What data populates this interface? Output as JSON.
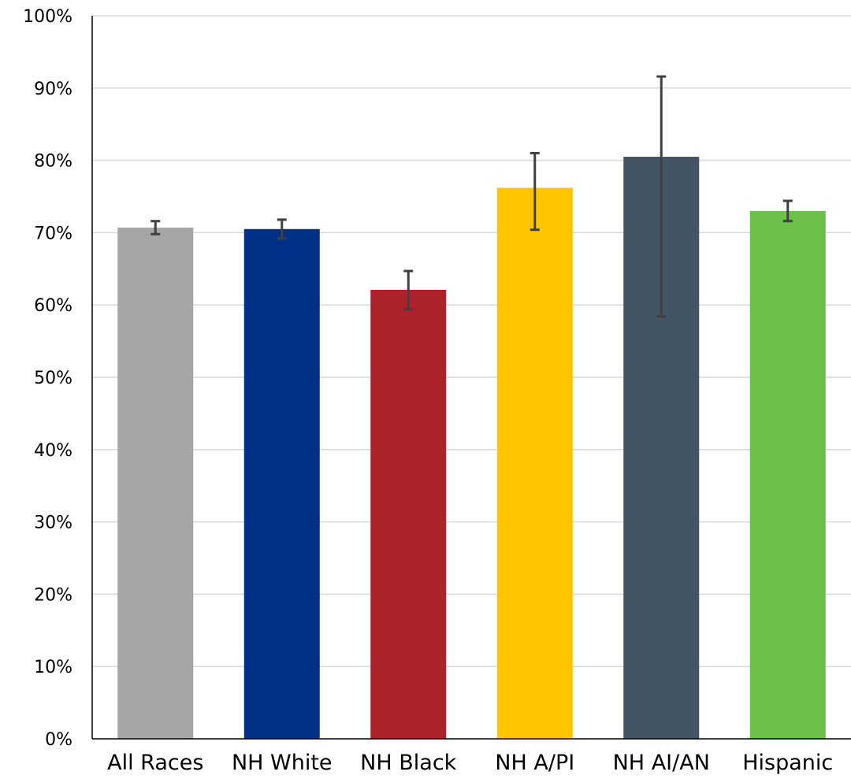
{
  "chart_data": {
    "type": "bar",
    "title": "",
    "xlabel": "",
    "ylabel": "",
    "ylim": [
      0,
      1
    ],
    "grid": true,
    "y_ticks": [
      "0%",
      "10%",
      "20%",
      "30%",
      "40%",
      "50%",
      "60%",
      "70%",
      "80%",
      "90%",
      "100%"
    ],
    "categories": [
      "All Races",
      "NH White",
      "NH Black",
      "NH A/PI",
      "NH AI/AN",
      "Hispanic"
    ],
    "values": [
      0.707,
      0.705,
      0.621,
      0.762,
      0.805,
      0.73
    ],
    "error_low": [
      0.698,
      0.692,
      0.594,
      0.704,
      0.584,
      0.716
    ],
    "error_high": [
      0.716,
      0.718,
      0.647,
      0.81,
      0.916,
      0.744
    ],
    "colors": [
      "#a6a6a6",
      "#003087",
      "#ab222b",
      "#ffc600",
      "#435464",
      "#6dbf4b"
    ],
    "error_bar_color": "#404040",
    "gridline_color": "#d9d9d9"
  }
}
